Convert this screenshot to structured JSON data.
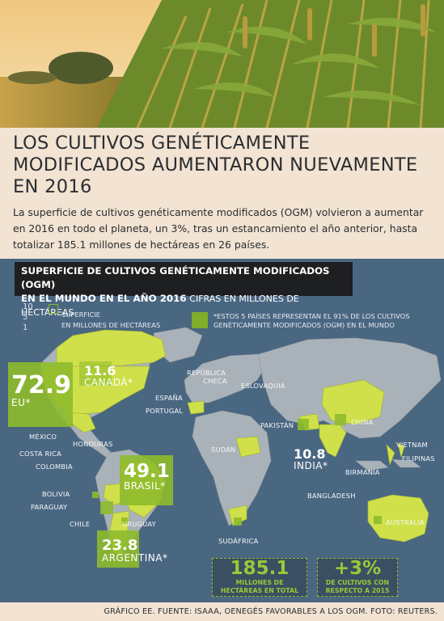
{
  "header": {
    "title": "LOS CULTIVOS GENÉTICAMENTE MODIFICADOS AUMENTARON NUEVAMENTE EN 2016",
    "intro": "La superficie de cultivos genéticamente modificados (OGM) volvieron a aumentar en 2016 en todo el planeta, un 3%, tras un estancamiento el año anterior, hasta totalizar 185.1 millones de hectáreas en 26 países."
  },
  "map": {
    "subtitle_bold_1": "SUPERFICIE DE CULTIVOS GENÉTICAMENTE MODIFICADOS (OGM)",
    "subtitle_bold_2": "EN EL MUNDO EN EL AÑO 2016",
    "subtitle_light": "CIFRAS EN MILLONES DE HECTÁREAS",
    "legend_scale": [
      "10",
      "5",
      "1"
    ],
    "legend_label_1": "SUPERFICIE",
    "legend_label_2": "EN MILLONES DE HECTÁREAS",
    "note": "*ESTOS 5 PAÍSES REPRESENTAN EL 91% DE LOS CULTIVOS GENÉTICAMENTE MODIFICADOS (OGM) EN EL MUNDO",
    "countries": {
      "eu": {
        "value": "72.9",
        "label": "EU*"
      },
      "canada": {
        "value": "11.6",
        "label": "CANADÁ*"
      },
      "brasil": {
        "value": "49.1",
        "label": "BRASIL*"
      },
      "argentina": {
        "value": "23.8",
        "label": "ARGENTINA*"
      },
      "india": {
        "value": "10.8",
        "label": "INDIA*"
      }
    },
    "labels": {
      "mexico": "MÉXICO",
      "honduras": "HONDURAS",
      "costa_rica": "COSTA RICA",
      "colombia": "COLOMBIA",
      "bolivia": "BOLIVIA",
      "paraguay": "PARAGUAY",
      "chile": "CHILE",
      "uruguay": "URUGUAY",
      "espana": "ESPAÑA",
      "portugal": "PORTUGAL",
      "republica_checa_1": "REPÚBLICA",
      "republica_checa_2": "CHECA",
      "eslovaquia": "ESLOVAQUIA",
      "pakistan": "PAKISTÁN",
      "china": "CHINA",
      "sudan": "SUDÁN",
      "vietnam": "VIETNAM",
      "filipinas": "FILIPINAS",
      "birmania": "BIRMANIA",
      "bangladesh": "BANGLADESH",
      "australia": "AUSTRALIA",
      "sudafrica": "SUDÁFRICA"
    },
    "stats": {
      "total_value": "185.1",
      "total_desc_1": "MILLONES DE",
      "total_desc_2": "HECTÁREAS EN TOTAL",
      "growth_value": "+3%",
      "growth_desc_1": "DE CULTIVOS CON",
      "growth_desc_2": "RESPECTO A 2015"
    }
  },
  "footer": {
    "credits": "GRÁFICO EE. FUENTE: ISAAA, OENEGÉS FAVORABLES A LOS OGM. FOTO: REUTERS."
  },
  "colors": {
    "background": "#f2e3d2",
    "ocean": "#4a6782",
    "land": "#aab2b9",
    "gm_land": "#cfe04a",
    "accent_green": "#8ebb2c",
    "text_dark": "#2a2d31"
  }
}
